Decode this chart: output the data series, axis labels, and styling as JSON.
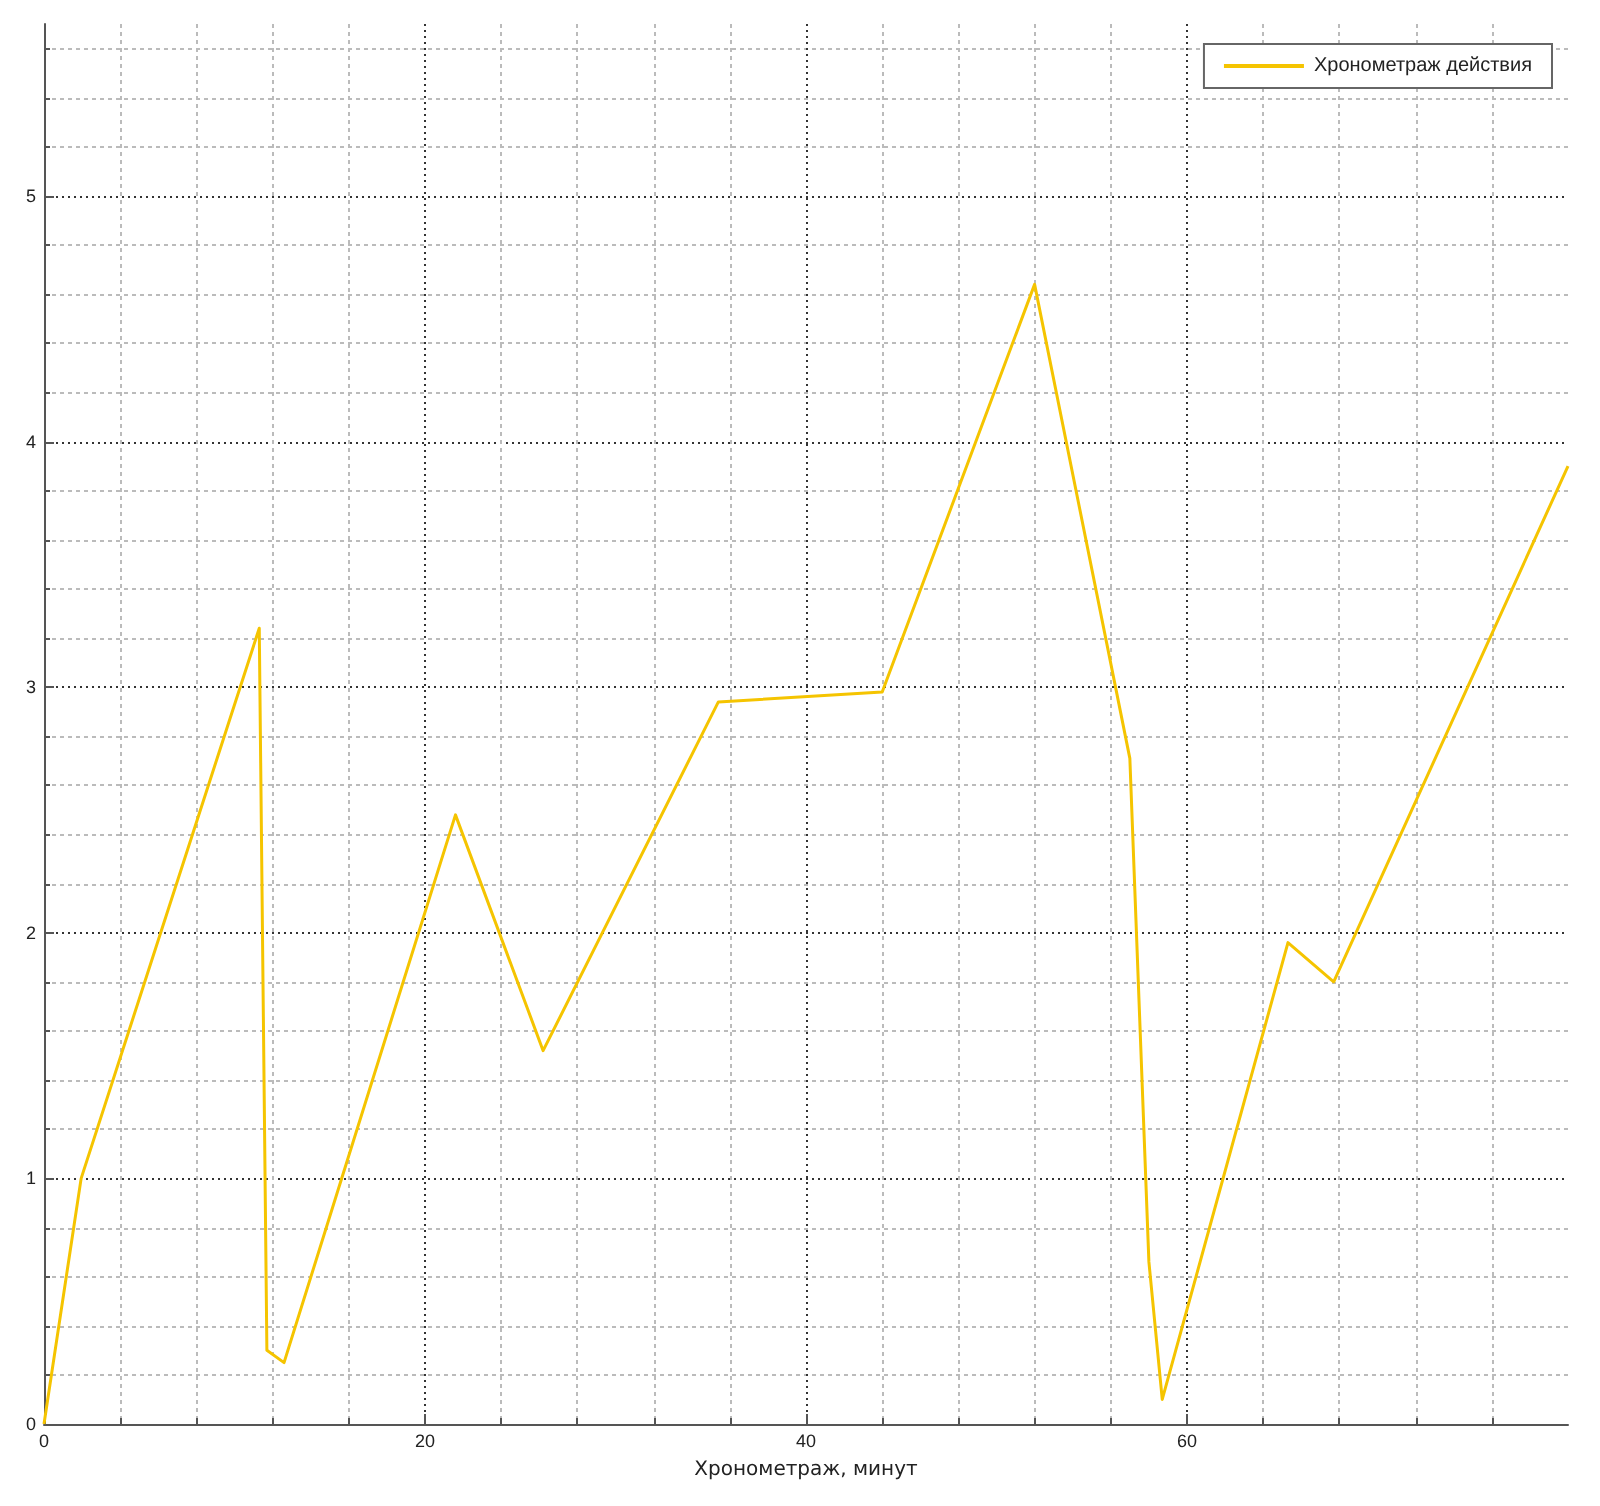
{
  "chart_data": {
    "type": "line",
    "xlabel": "Хронометраж, минут",
    "xlim": [
      0,
      80
    ],
    "xticks": [
      0,
      20,
      40,
      60
    ],
    "ylim": [
      0,
      5.7
    ],
    "yticks": [
      0,
      1,
      2,
      3,
      4,
      5
    ],
    "grid": true,
    "legend": "top right",
    "marker": "none",
    "line_style": "solid",
    "series": [
      {
        "name": "Хронометраж действия",
        "color": "#f5c400",
        "x": [
          0,
          1.95,
          11.3,
          11.7,
          12.6,
          21.6,
          26.2,
          35.4,
          44.0,
          52.0,
          57.0,
          58.0,
          58.7,
          65.3,
          67.7,
          80
        ],
        "values": [
          0,
          1.0,
          3.24,
          0.3,
          0.25,
          2.48,
          1.52,
          2.94,
          2.98,
          4.64,
          2.71,
          0.66,
          0.1,
          1.96,
          1.8,
          3.9
        ]
      }
    ]
  }
}
